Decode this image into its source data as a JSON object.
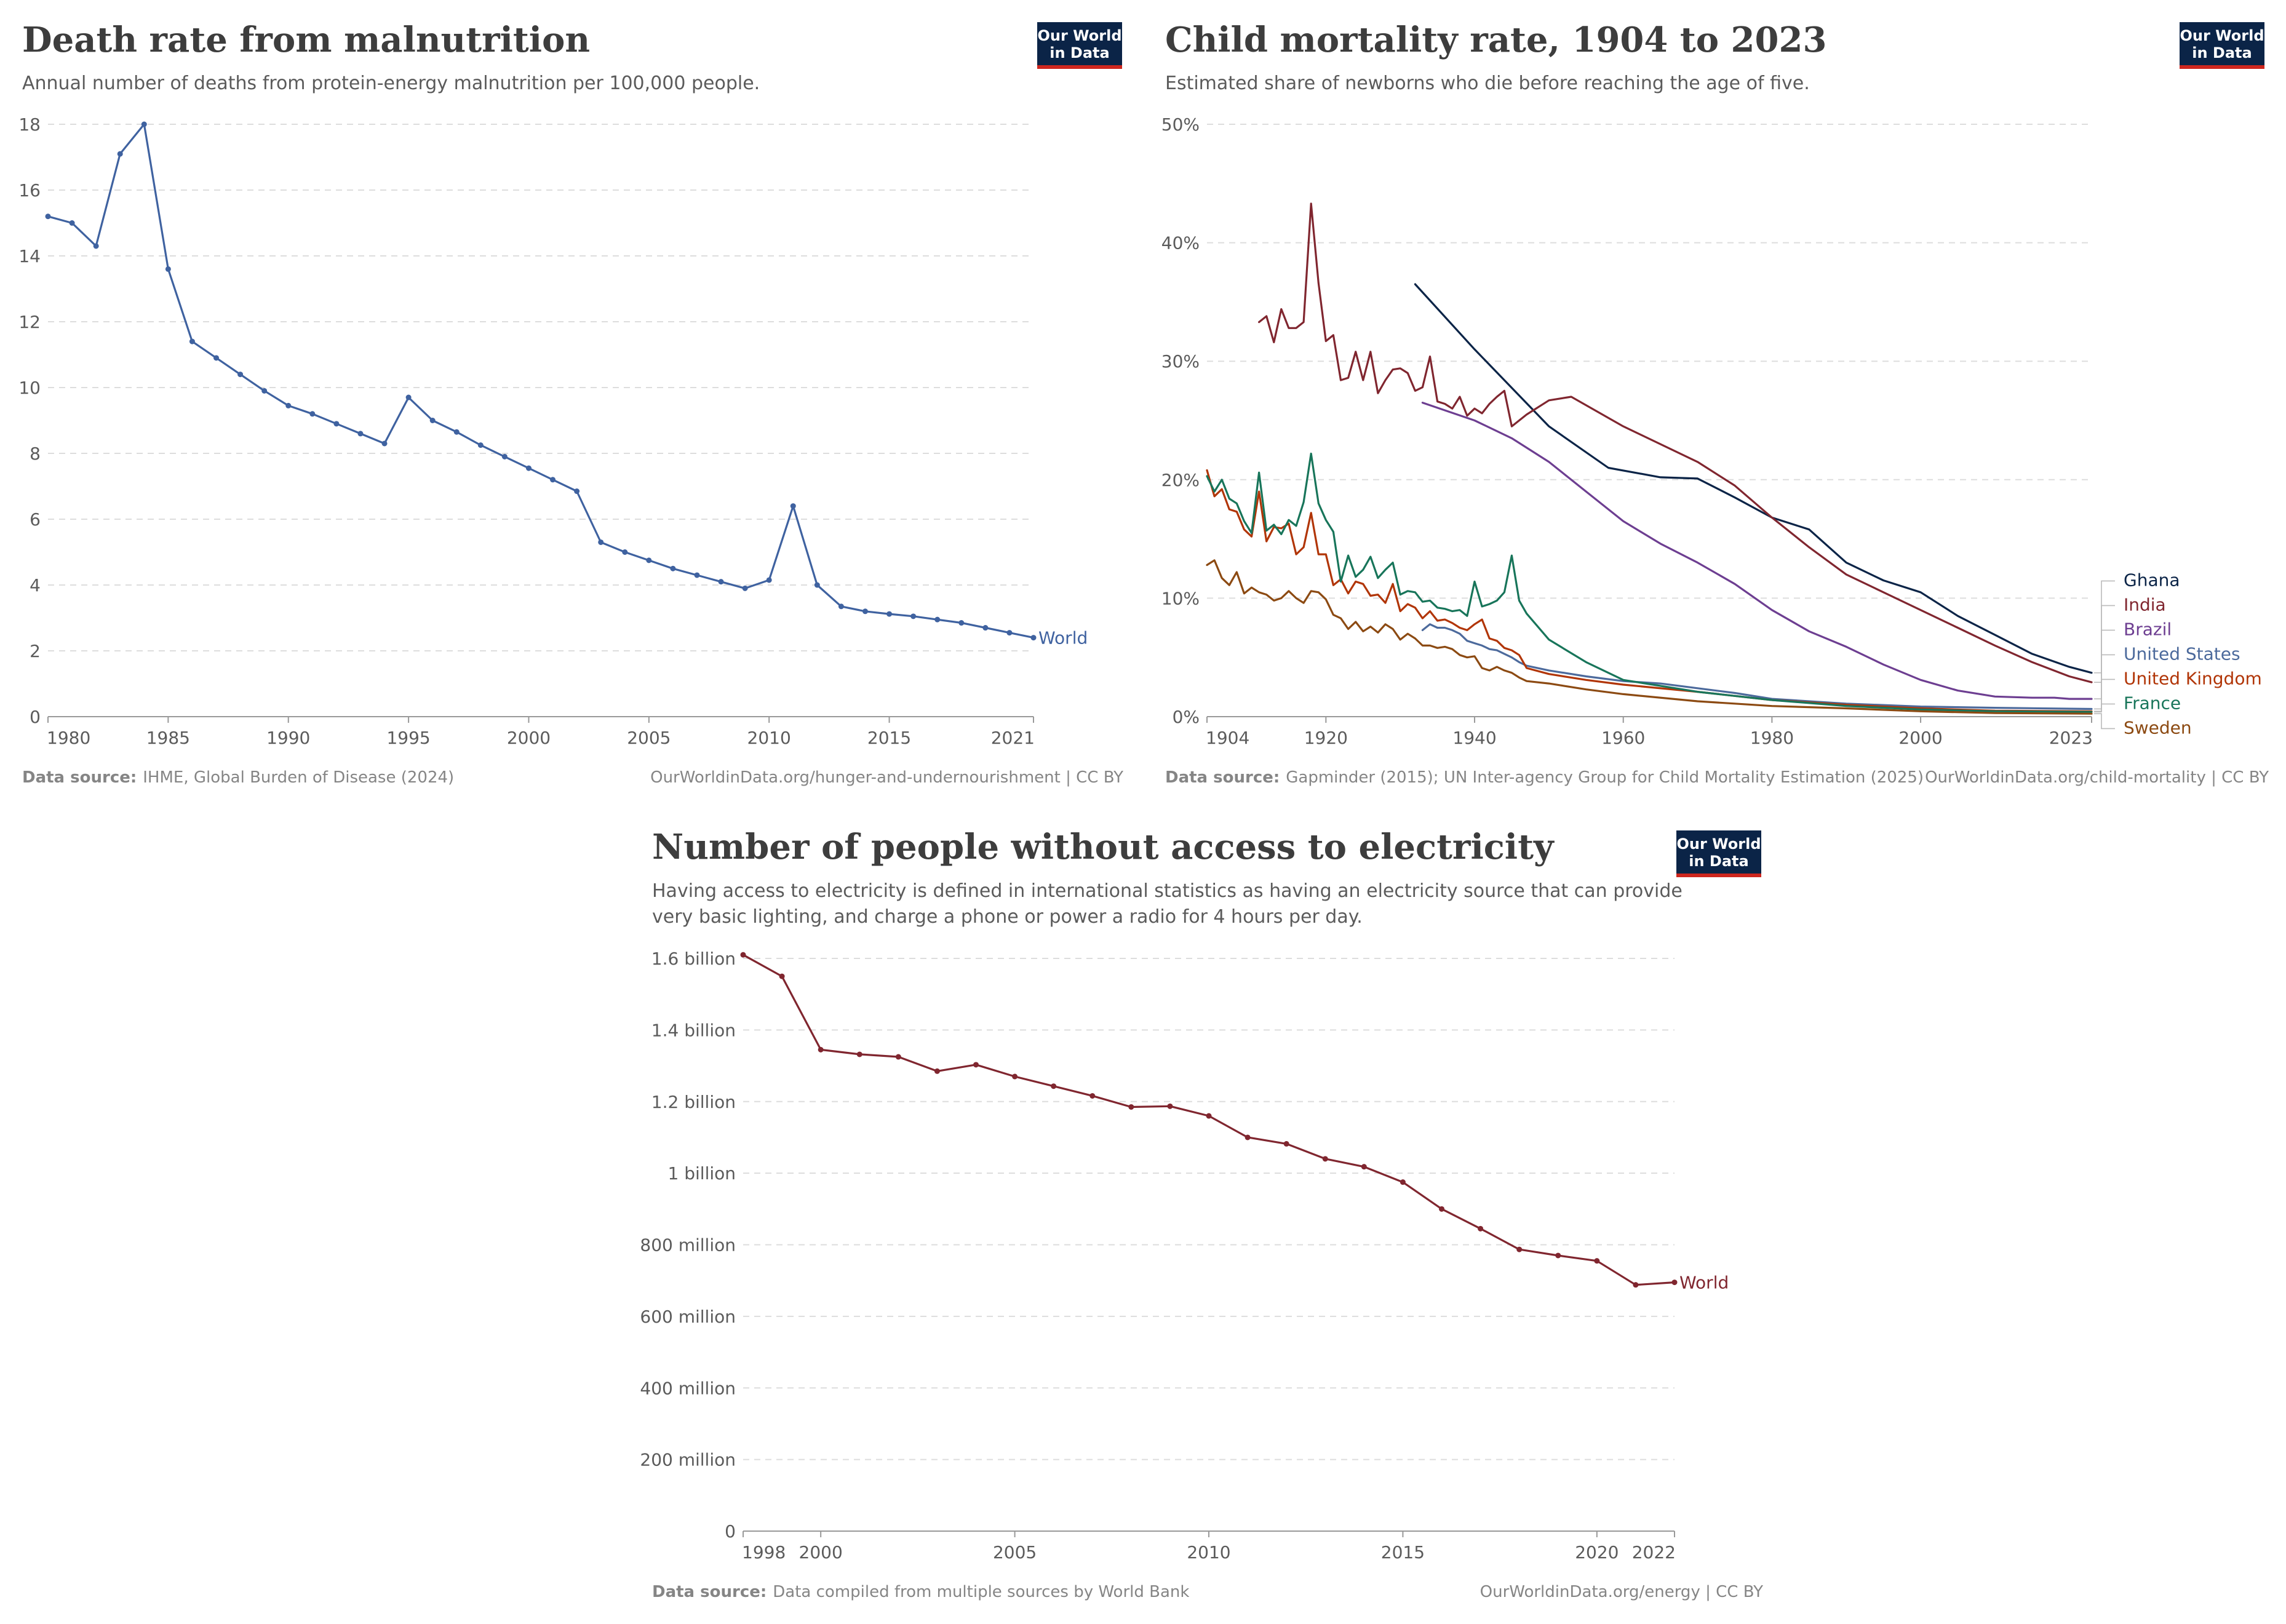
{
  "colors": {
    "logo_bg": "#0b2447",
    "logo_red": "#ce261e",
    "grid": "#dddddd",
    "text": "#5b5b5b"
  },
  "logo": {
    "line1": "Our World",
    "line2": "in Data"
  },
  "chart_data": [
    {
      "id": "malnutrition",
      "type": "line",
      "title": "Death rate from malnutrition",
      "subtitle": "Annual number of deaths from protein-energy malnutrition per 100,000 people.",
      "source_label": "Data source:",
      "source_text": "IHME, Global Burden of Disease (2024)",
      "url_text": "OurWorldinData.org/hunger-and-undernourishment | CC BY",
      "xlim": [
        1980,
        2021
      ],
      "ylim": [
        0,
        18
      ],
      "x_ticks": [
        1980,
        1985,
        1990,
        1995,
        2000,
        2005,
        2010,
        2015,
        2021
      ],
      "x_tick_labels": [
        "1980",
        "1985",
        "1990",
        "1995",
        "2000",
        "2005",
        "2010",
        "2015",
        "2021"
      ],
      "y_ticks": [
        0,
        2,
        4,
        6,
        8,
        10,
        12,
        14,
        16,
        18
      ],
      "y_tick_labels": [
        "0",
        "2",
        "4",
        "6",
        "8",
        "10",
        "12",
        "14",
        "16",
        "18"
      ],
      "grid": true,
      "markers": true,
      "series": [
        {
          "name": "World",
          "color": "#3f62a0",
          "x": [
            1980,
            1981,
            1982,
            1983,
            1984,
            1985,
            1986,
            1987,
            1988,
            1989,
            1990,
            1991,
            1992,
            1993,
            1994,
            1995,
            1996,
            1997,
            1998,
            1999,
            2000,
            2001,
            2002,
            2003,
            2004,
            2005,
            2006,
            2007,
            2008,
            2009,
            2010,
            2011,
            2012,
            2013,
            2014,
            2015,
            2016,
            2017,
            2018,
            2019,
            2020,
            2021
          ],
          "y": [
            15.2,
            15.0,
            14.3,
            17.1,
            18.0,
            13.6,
            11.4,
            10.9,
            10.4,
            9.9,
            9.45,
            9.2,
            8.9,
            8.6,
            8.3,
            9.7,
            9.0,
            8.65,
            8.25,
            7.9,
            7.55,
            7.2,
            6.85,
            5.3,
            5.0,
            4.75,
            4.5,
            4.3,
            4.1,
            3.9,
            4.15,
            6.4,
            4.0,
            3.35,
            3.2,
            3.12,
            3.05,
            2.95,
            2.85,
            2.7,
            2.55,
            2.4
          ]
        }
      ]
    },
    {
      "id": "child_mortality",
      "type": "line",
      "title": "Child mortality rate, 1904 to 2023",
      "subtitle": "Estimated share of newborns who die before reaching the age of five.",
      "source_label": "Data source:",
      "source_text": "Gapminder (2015); UN Inter-agency Group for Child Mortality Estimation (2025)",
      "url_text": "OurWorldinData.org/child-mortality | CC BY",
      "xlim": [
        1904,
        2023
      ],
      "ylim": [
        0,
        50
      ],
      "x_ticks": [
        1904,
        1920,
        1940,
        1960,
        1980,
        2000,
        2023
      ],
      "x_tick_labels": [
        "1904",
        "1920",
        "1940",
        "1960",
        "1980",
        "2000",
        "2023"
      ],
      "y_ticks": [
        0,
        10,
        20,
        30,
        40,
        50
      ],
      "y_tick_labels": [
        "0%",
        "10%",
        "20%",
        "30%",
        "40%",
        "50%"
      ],
      "grid": true,
      "markers": false,
      "series": [
        {
          "name": "Ghana",
          "color": "#0b2447",
          "x": [
            1932,
            1940,
            1950,
            1958,
            1965,
            1970,
            1975,
            1980,
            1985,
            1990,
            1995,
            2000,
            2005,
            2010,
            2015,
            2020,
            2023
          ],
          "y": [
            36.5,
            31,
            24.5,
            21,
            20.2,
            20.1,
            18.5,
            16.8,
            15.8,
            13,
            11.5,
            10.5,
            8.5,
            6.9,
            5.3,
            4.2,
            3.7
          ]
        },
        {
          "name": "India",
          "color": "#80262f",
          "x": [
            1911,
            1912,
            1913,
            1914,
            1915,
            1916,
            1917,
            1918,
            1919,
            1920,
            1921,
            1922,
            1923,
            1924,
            1925,
            1926,
            1927,
            1928,
            1929,
            1930,
            1931,
            1932,
            1933,
            1934,
            1935,
            1936,
            1937,
            1938,
            1939,
            1940,
            1941,
            1942,
            1943,
            1944,
            1945,
            1946,
            1947,
            1950,
            1953,
            1960,
            1970,
            1975,
            1980,
            1985,
            1990,
            1995,
            2000,
            2005,
            2010,
            2015,
            2020,
            2023
          ],
          "y": [
            33.3,
            33.8,
            31.6,
            34.4,
            32.8,
            32.8,
            33.3,
            43.3,
            36.6,
            31.7,
            32.2,
            28.4,
            28.6,
            30.8,
            28.4,
            30.8,
            27.3,
            28.4,
            29.3,
            29.4,
            29.0,
            27.5,
            27.8,
            30.4,
            26.6,
            26.4,
            26.0,
            27.0,
            25.4,
            26.0,
            25.6,
            26.4,
            27.0,
            27.5,
            24.5,
            25,
            25.5,
            26.7,
            27.0,
            24.5,
            21.5,
            19.5,
            16.8,
            14.3,
            12.0,
            10.5,
            9.0,
            7.5,
            6.0,
            4.6,
            3.4,
            2.9
          ]
        },
        {
          "name": "Brazil",
          "color": "#6d3e91",
          "x": [
            1933,
            1940,
            1945,
            1950,
            1955,
            1960,
            1965,
            1970,
            1975,
            1980,
            1985,
            1990,
            1995,
            2000,
            2005,
            2010,
            2015,
            2018,
            2020,
            2023
          ],
          "y": [
            26.5,
            25,
            23.5,
            21.5,
            19,
            16.5,
            14.6,
            13,
            11.2,
            9,
            7.2,
            5.9,
            4.4,
            3.1,
            2.2,
            1.7,
            1.6,
            1.6,
            1.5,
            1.5
          ]
        },
        {
          "name": "United States",
          "color": "#4c6a9c",
          "x": [
            1933,
            1934,
            1935,
            1936,
            1937,
            1938,
            1939,
            1940,
            1941,
            1942,
            1943,
            1944,
            1945,
            1946,
            1947,
            1950,
            1955,
            1960,
            1965,
            1970,
            1975,
            1980,
            1990,
            2000,
            2010,
            2023
          ],
          "y": [
            7.3,
            7.8,
            7.5,
            7.5,
            7.3,
            7.0,
            6.4,
            6.2,
            6.0,
            5.7,
            5.6,
            5.3,
            5.0,
            4.6,
            4.3,
            3.9,
            3.4,
            3.0,
            2.8,
            2.4,
            2.0,
            1.5,
            1.1,
            0.85,
            0.75,
            0.65
          ]
        },
        {
          "name": "United Kingdom",
          "color": "#b13507",
          "x": [
            1904,
            1905,
            1906,
            1907,
            1908,
            1909,
            1910,
            1911,
            1912,
            1913,
            1914,
            1915,
            1916,
            1917,
            1918,
            1919,
            1920,
            1921,
            1922,
            1923,
            1924,
            1925,
            1926,
            1927,
            1928,
            1929,
            1930,
            1931,
            1932,
            1933,
            1934,
            1935,
            1936,
            1937,
            1938,
            1939,
            1940,
            1941,
            1942,
            1943,
            1944,
            1945,
            1946,
            1947,
            1950,
            1955,
            1960,
            1970,
            1980,
            1990,
            2000,
            2010,
            2023
          ],
          "y": [
            20.8,
            18.6,
            19.2,
            17.5,
            17.3,
            15.8,
            15.2,
            19.0,
            14.8,
            16.0,
            15.9,
            16.3,
            13.7,
            14.3,
            17.2,
            13.7,
            13.7,
            11.1,
            11.6,
            10.4,
            11.4,
            11.2,
            10.2,
            10.3,
            9.6,
            11.2,
            8.9,
            9.5,
            9.2,
            8.3,
            8.9,
            8.1,
            8.2,
            7.9,
            7.5,
            7.3,
            7.8,
            8.2,
            6.6,
            6.4,
            5.8,
            5.6,
            5.2,
            4.1,
            3.6,
            3.1,
            2.7,
            2.1,
            1.4,
            1.0,
            0.7,
            0.5,
            0.45
          ]
        },
        {
          "name": "France",
          "color": "#18755a",
          "x": [
            1904,
            1905,
            1906,
            1907,
            1908,
            1909,
            1910,
            1911,
            1912,
            1913,
            1914,
            1915,
            1916,
            1917,
            1918,
            1919,
            1920,
            1921,
            1922,
            1923,
            1924,
            1925,
            1926,
            1927,
            1928,
            1929,
            1930,
            1931,
            1932,
            1933,
            1934,
            1935,
            1936,
            1937,
            1938,
            1939,
            1940,
            1941,
            1942,
            1943,
            1944,
            1945,
            1946,
            1947,
            1950,
            1955,
            1960,
            1970,
            1980,
            1990,
            2000,
            2010,
            2023
          ],
          "y": [
            20.3,
            19.0,
            20.0,
            18.4,
            18.0,
            16.5,
            15.5,
            20.6,
            15.7,
            16.2,
            15.4,
            16.6,
            16.1,
            18.1,
            22.2,
            18.0,
            16.6,
            15.6,
            11.4,
            13.6,
            11.8,
            12.4,
            13.5,
            11.7,
            12.4,
            13.0,
            10.3,
            10.6,
            10.5,
            9.7,
            9.8,
            9.2,
            9.1,
            8.9,
            9.0,
            8.5,
            11.4,
            9.3,
            9.5,
            9.8,
            10.5,
            13.6,
            9.8,
            8.7,
            6.5,
            4.6,
            3.1,
            2.1,
            1.4,
            0.9,
            0.6,
            0.45,
            0.4
          ]
        },
        {
          "name": "Sweden",
          "color": "#8c4a12",
          "x": [
            1904,
            1905,
            1906,
            1907,
            1908,
            1909,
            1910,
            1911,
            1912,
            1913,
            1914,
            1915,
            1916,
            1917,
            1918,
            1919,
            1920,
            1921,
            1922,
            1923,
            1924,
            1925,
            1926,
            1927,
            1928,
            1929,
            1930,
            1931,
            1932,
            1933,
            1934,
            1935,
            1936,
            1937,
            1938,
            1939,
            1940,
            1941,
            1942,
            1943,
            1944,
            1945,
            1946,
            1947,
            1950,
            1955,
            1960,
            1970,
            1980,
            1990,
            2000,
            2010,
            2023
          ],
          "y": [
            12.8,
            13.2,
            11.7,
            11.1,
            12.2,
            10.4,
            10.9,
            10.5,
            10.3,
            9.8,
            10.0,
            10.6,
            10.0,
            9.6,
            10.6,
            10.5,
            9.9,
            8.6,
            8.3,
            7.4,
            8.0,
            7.2,
            7.6,
            7.1,
            7.8,
            7.4,
            6.5,
            7.0,
            6.6,
            6.0,
            6.0,
            5.8,
            5.9,
            5.7,
            5.2,
            5.0,
            5.1,
            4.1,
            3.9,
            4.2,
            3.9,
            3.7,
            3.3,
            3.0,
            2.8,
            2.3,
            1.9,
            1.3,
            0.9,
            0.7,
            0.45,
            0.3,
            0.25
          ]
        }
      ]
    },
    {
      "id": "electricity",
      "type": "line",
      "title": "Number of people without access to electricity",
      "subtitle_lines": [
        "Having access to electricity is defined in international statistics as having an electricity source that can provide",
        "very basic lighting, and charge a phone or power a radio for 4 hours per day."
      ],
      "source_label": "Data source:",
      "source_text": "Data compiled from multiple sources by World Bank",
      "url_text": "OurWorldinData.org/energy | CC BY",
      "xlim": [
        1998,
        2022
      ],
      "ylim": [
        0,
        1600000000
      ],
      "x_ticks": [
        1998,
        2000,
        2005,
        2010,
        2015,
        2020,
        2022
      ],
      "x_tick_labels": [
        "1998",
        "2000",
        "2005",
        "2010",
        "2015",
        "2020",
        "2022"
      ],
      "y_ticks": [
        0,
        200000000,
        400000000,
        600000000,
        800000000,
        1000000000,
        1200000000,
        1400000000,
        1600000000
      ],
      "y_tick_labels": [
        "0",
        "200 million",
        "400 million",
        "600 million",
        "800 million",
        "1 billion",
        "1.2 billion",
        "1.4 billion",
        "1.6 billion"
      ],
      "grid": true,
      "markers": true,
      "series": [
        {
          "name": "World",
          "color": "#80262f",
          "x": [
            1998,
            1999,
            2000,
            2001,
            2002,
            2003,
            2004,
            2005,
            2006,
            2007,
            2008,
            2009,
            2010,
            2011,
            2012,
            2013,
            2014,
            2015,
            2016,
            2017,
            2018,
            2019,
            2020,
            2021,
            2022
          ],
          "y": [
            1610000000,
            1550000000,
            1345000000,
            1332000000,
            1325000000,
            1285000000,
            1303000000,
            1270000000,
            1243000000,
            1216000000,
            1185000000,
            1187000000,
            1160000000,
            1100000000,
            1082000000,
            1040000000,
            1018000000,
            975000000,
            900000000,
            845000000,
            787000000,
            770000000,
            755000000,
            688000000,
            695000000
          ]
        }
      ]
    }
  ]
}
